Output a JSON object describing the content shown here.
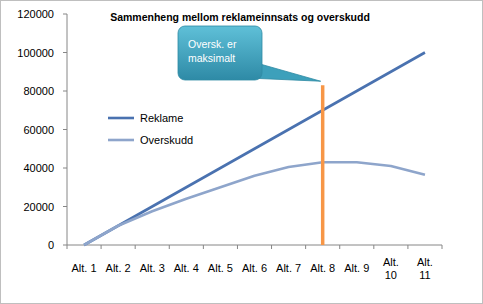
{
  "chart_data": {
    "type": "line",
    "title": "Sammenheng mellom reklameinnsats og overskudd",
    "categories": [
      "Alt. 1",
      "Alt. 2",
      "Alt. 3",
      "Alt. 4",
      "Alt. 5",
      "Alt. 6",
      "Alt. 7",
      "Alt. 8",
      "Alt. 9",
      "Alt. 10",
      "Alt. 11"
    ],
    "series": [
      {
        "name": "Reklame",
        "color": "#4a72b0",
        "values": [
          0,
          10000,
          20000,
          30000,
          40000,
          50000,
          60000,
          70000,
          80000,
          90000,
          100000
        ]
      },
      {
        "name": "Overskudd",
        "color": "#8ea5cb",
        "values": [
          0,
          10000,
          17500,
          24000,
          30000,
          36000,
          40500,
          43000,
          43000,
          41000,
          36500
        ]
      }
    ],
    "annotations": [
      {
        "text": "Oversk. er maksimalt",
        "category": "Alt. 8",
        "value": 83000,
        "color": "#f79646"
      }
    ],
    "ylim": [
      0,
      120000
    ],
    "yticks": [
      0,
      20000,
      40000,
      60000,
      80000,
      100000,
      120000
    ],
    "grid": false,
    "legend": "left"
  }
}
